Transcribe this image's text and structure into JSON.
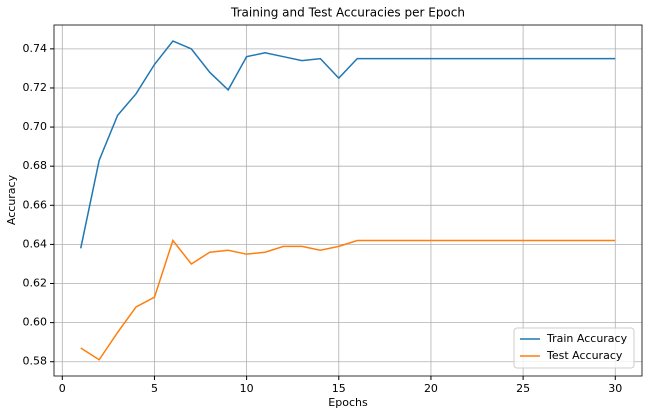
{
  "chart_data": {
    "type": "line",
    "title": "Training and Test Accuracies per Epoch",
    "xlabel": "Epochs",
    "ylabel": "Accuracy",
    "x": [
      1,
      2,
      3,
      4,
      5,
      6,
      7,
      8,
      9,
      10,
      11,
      12,
      13,
      14,
      15,
      16,
      17,
      18,
      19,
      20,
      21,
      22,
      23,
      24,
      25,
      26,
      27,
      28,
      29,
      30
    ],
    "series": [
      {
        "name": "Train Accuracy",
        "color": "#1f77b4",
        "values": [
          0.638,
          0.683,
          0.706,
          0.717,
          0.732,
          0.744,
          0.74,
          0.728,
          0.719,
          0.736,
          0.738,
          0.736,
          0.734,
          0.735,
          0.725,
          0.735,
          0.735,
          0.735,
          0.735,
          0.735,
          0.735,
          0.735,
          0.735,
          0.735,
          0.735,
          0.735,
          0.735,
          0.735,
          0.735,
          0.735
        ]
      },
      {
        "name": "Test Accuracy",
        "color": "#ff7f0e",
        "values": [
          0.587,
          0.581,
          0.595,
          0.608,
          0.613,
          0.642,
          0.63,
          0.636,
          0.637,
          0.635,
          0.636,
          0.639,
          0.639,
          0.637,
          0.639,
          0.642,
          0.642,
          0.642,
          0.642,
          0.642,
          0.642,
          0.642,
          0.642,
          0.642,
          0.642,
          0.642,
          0.642,
          0.642,
          0.642,
          0.642
        ]
      }
    ],
    "xlim": [
      -0.45,
      31.45
    ],
    "xticks": [
      0,
      5,
      10,
      15,
      20,
      25,
      30
    ],
    "ylim": [
      0.5727,
      0.7522
    ],
    "yticks": [
      0.58,
      {
        "value": 0.6,
        "label": "0.60"
      },
      0.62,
      0.64,
      0.66,
      0.68,
      {
        "value": 0.7,
        "label": "0.70"
      },
      0.72,
      0.74
    ],
    "grid": true,
    "legend": "lower right"
  }
}
